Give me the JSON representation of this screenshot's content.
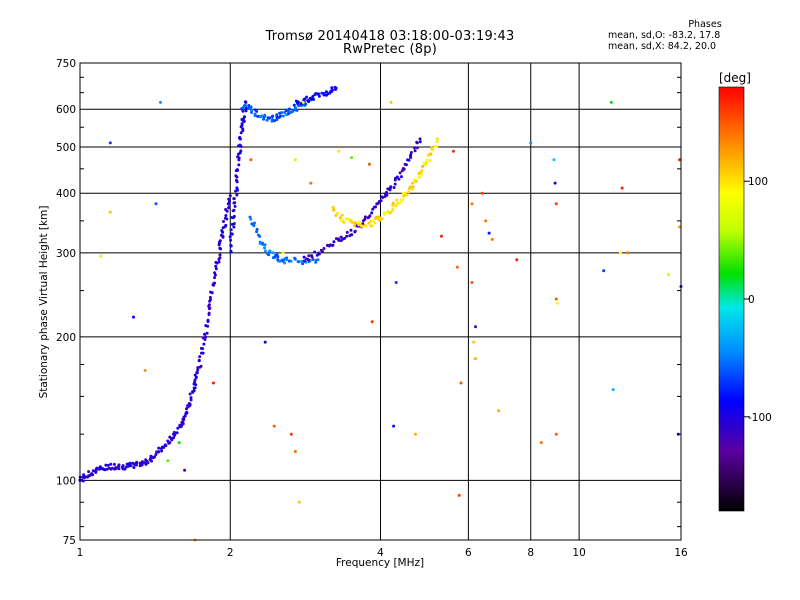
{
  "chart_data": {
    "type": "scatter",
    "title": "Tromsø 20140418 03:18:00-03:19:43",
    "subtitle": "RwPretec (8p)",
    "xlabel": "Frequency [MHz]",
    "ylabel": "Stationary phase Virtual Height [km]",
    "xscale": "log",
    "yscale": "log",
    "xlim": [
      1,
      16
    ],
    "ylim": [
      75,
      750
    ],
    "x_ticks": [
      1,
      2,
      4,
      6,
      8,
      10,
      16
    ],
    "x_tick_labels": [
      "1",
      "2",
      "4",
      "6",
      "8",
      "10",
      "16"
    ],
    "x_grid": [
      2,
      4,
      6,
      8,
      10
    ],
    "y_ticks": [
      75,
      100,
      200,
      300,
      400,
      500,
      600,
      750
    ],
    "y_tick_labels": [
      "75",
      "100",
      "200",
      "300",
      "400",
      "500",
      "600",
      "750"
    ],
    "y_grid": [
      100,
      200,
      300,
      400,
      500,
      600
    ],
    "grid": true,
    "colorbar": {
      "label": "[deg]",
      "min": -180,
      "max": 180,
      "ticks": [
        100,
        0,
        -100
      ],
      "tick_labels": [
        "100",
        "0",
        "-100"
      ],
      "placement": "right"
    },
    "stats": {
      "heading": "Phases",
      "line_o": "mean, sd,O: -83.2, 17.8",
      "line_x": "mean, sd,X: 84.2, 20.0"
    },
    "traces": [
      {
        "x": [
          1.0,
          1.03,
          1.06,
          1.1,
          1.15,
          1.2,
          1.25,
          1.3,
          1.35,
          1.4,
          1.45,
          1.5,
          1.55,
          1.6,
          1.63,
          1.66,
          1.7,
          1.73,
          1.76,
          1.8,
          1.83,
          1.86,
          1.9,
          1.93,
          1.96,
          2.0
        ],
        "y": [
          100,
          102,
          104,
          106,
          107,
          107,
          107,
          108,
          109,
          112,
          116,
          120,
          125,
          131,
          138,
          147,
          158,
          172,
          190,
          215,
          242,
          268,
          300,
          330,
          360,
          395
        ],
        "phase": -105
      },
      {
        "x": [
          2.0,
          2.02,
          2.04,
          2.06,
          2.08,
          2.1,
          2.12,
          2.15
        ],
        "y": [
          300,
          340,
          380,
          420,
          470,
          520,
          570,
          620
        ],
        "phase": -100
      },
      {
        "x": [
          2.1,
          2.2,
          2.3,
          2.4,
          2.5,
          2.6,
          2.7,
          2.8,
          2.9
        ],
        "y": [
          610,
          600,
          580,
          570,
          580,
          590,
          600,
          615,
          630
        ],
        "phase": -60
      },
      {
        "x": [
          2.2,
          2.3,
          2.4,
          2.5,
          2.6,
          2.8,
          3.0
        ],
        "y": [
          355,
          320,
          300,
          291,
          289,
          288,
          290
        ],
        "phase": -50
      },
      {
        "x": [
          2.8,
          3.0,
          3.2,
          3.4,
          3.6,
          3.8,
          4.0,
          4.2,
          4.4,
          4.6,
          4.8
        ],
        "y": [
          290,
          300,
          313,
          325,
          340,
          360,
          385,
          410,
          440,
          480,
          520
        ],
        "phase": -110
      },
      {
        "x": [
          3.2,
          3.4,
          3.6,
          3.8,
          4.0,
          4.2,
          4.4,
          4.6,
          4.8,
          5.0,
          5.2
        ],
        "y": [
          370,
          350,
          345,
          345,
          355,
          370,
          390,
          410,
          440,
          470,
          520
        ],
        "phase": 100
      },
      {
        "x": [
          2.7,
          2.85,
          3.0,
          3.15,
          3.25
        ],
        "y": [
          620,
          630,
          640,
          650,
          660
        ],
        "phase": -90
      }
    ],
    "scatter_points": [
      [
        1.15,
        510,
        -70
      ],
      [
        1.15,
        365,
        110
      ],
      [
        1.1,
        295,
        70
      ],
      [
        1.42,
        380,
        -60
      ],
      [
        1.45,
        620,
        -40
      ],
      [
        1.28,
        220,
        -90
      ],
      [
        1.35,
        170,
        130
      ],
      [
        1.5,
        110,
        40
      ],
      [
        1.7,
        75,
        120
      ],
      [
        1.85,
        160,
        170
      ],
      [
        2.35,
        195,
        -90
      ],
      [
        2.45,
        130,
        150
      ],
      [
        2.55,
        300,
        90
      ],
      [
        2.65,
        125,
        160
      ],
      [
        2.7,
        115,
        140
      ],
      [
        2.75,
        90,
        110
      ],
      [
        2.2,
        470,
        150
      ],
      [
        2.9,
        420,
        140
      ],
      [
        2.8,
        620,
        90
      ],
      [
        2.7,
        470,
        60
      ],
      [
        3.3,
        490,
        100
      ],
      [
        3.5,
        475,
        40
      ],
      [
        3.8,
        460,
        150
      ],
      [
        4.2,
        620,
        110
      ],
      [
        3.85,
        215,
        160
      ],
      [
        4.3,
        260,
        -70
      ],
      [
        4.25,
        130,
        -80
      ],
      [
        4.7,
        125,
        120
      ],
      [
        5.3,
        325,
        170
      ],
      [
        5.6,
        490,
        165
      ],
      [
        5.7,
        280,
        145
      ],
      [
        5.75,
        93,
        160
      ],
      [
        5.8,
        160,
        150
      ],
      [
        6.1,
        260,
        150
      ],
      [
        6.1,
        380,
        140
      ],
      [
        6.15,
        195,
        110
      ],
      [
        6.2,
        180,
        120
      ],
      [
        6.2,
        210,
        -120
      ],
      [
        6.4,
        400,
        160
      ],
      [
        6.5,
        350,
        140
      ],
      [
        6.6,
        330,
        -80
      ],
      [
        6.7,
        320,
        140
      ],
      [
        6.9,
        140,
        120
      ],
      [
        7.5,
        290,
        170
      ],
      [
        8.0,
        510,
        -40
      ],
      [
        8.4,
        120,
        140
      ],
      [
        8.9,
        470,
        -20
      ],
      [
        8.95,
        420,
        -100
      ],
      [
        9.0,
        380,
        160
      ],
      [
        9.0,
        240,
        150
      ],
      [
        9.0,
        125,
        150
      ],
      [
        9.05,
        235,
        90
      ],
      [
        11.2,
        275,
        -70
      ],
      [
        11.6,
        620,
        20
      ],
      [
        11.7,
        155,
        -30
      ],
      [
        12.1,
        300,
        90
      ],
      [
        12.2,
        410,
        170
      ],
      [
        12.5,
        300,
        140
      ],
      [
        15.1,
        270,
        60
      ],
      [
        15.8,
        125,
        -100
      ],
      [
        15.9,
        470,
        170
      ],
      [
        15.9,
        340,
        130
      ],
      [
        16.0,
        255,
        -110
      ],
      [
        1.58,
        120,
        20
      ],
      [
        1.62,
        105,
        -120
      ]
    ]
  }
}
